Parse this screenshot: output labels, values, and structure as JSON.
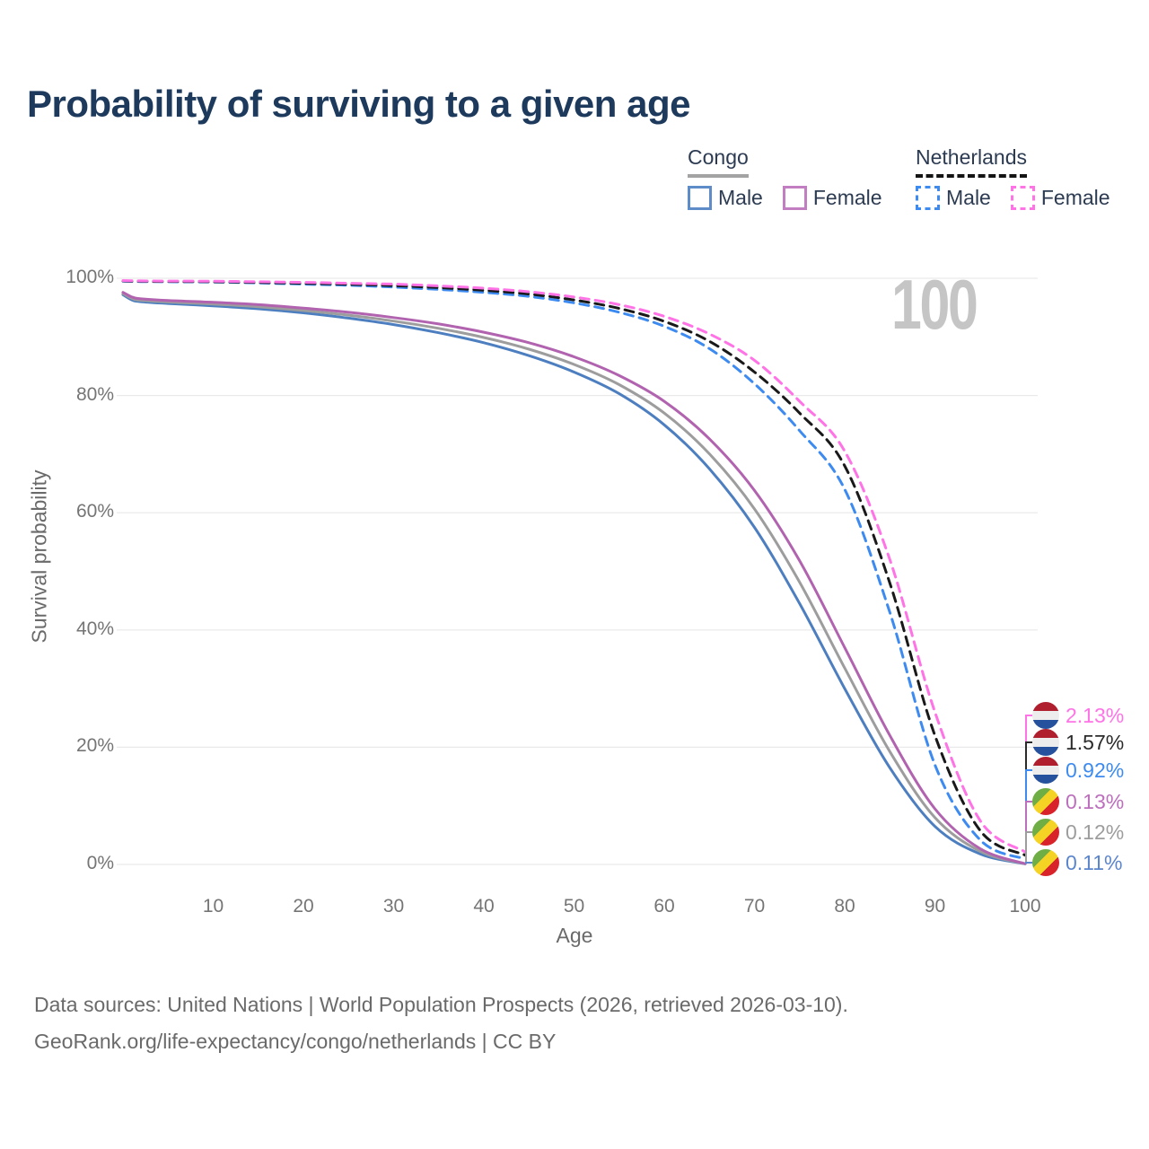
{
  "title": "Probability of surviving to a given age",
  "watermark_age": "100",
  "legend": {
    "congo": {
      "title": "Congo",
      "items": [
        {
          "label": "Male"
        },
        {
          "label": "Female"
        }
      ]
    },
    "netherlands": {
      "title": "Netherlands",
      "items": [
        {
          "label": "Male"
        },
        {
          "label": "Female"
        }
      ]
    }
  },
  "axes": {
    "x_title": "Age",
    "y_title": "Survival probability"
  },
  "footer": {
    "line1": "Data sources: United Nations | World Population Prospects (2026, retrieved 2026-03-10).",
    "line2": "GeoRank.org/life-expectancy/congo/netherlands | CC BY"
  },
  "colors": {
    "congo_male": "#4d7fc0",
    "congo_both": "#9d9d9d",
    "congo_female": "#b163af",
    "netherlands_male": "#3d8bf0",
    "netherlands_both": "#191919",
    "netherlands_female": "#ff73e6",
    "grid": "#e9e9e9",
    "title_text": "#1d3a5c",
    "tick_text": "#757575"
  },
  "chart_data": {
    "type": "line",
    "title": "Probability of surviving to a given age",
    "xlabel": "Age",
    "ylabel": "Survival probability",
    "xlim": [
      0,
      100
    ],
    "ylim": [
      0,
      100
    ],
    "grid": "horizontal",
    "legend_position": "top-right",
    "x_ticks": [
      10,
      20,
      30,
      40,
      50,
      60,
      70,
      80,
      90,
      100
    ],
    "x_tick_labels": [
      "10",
      "20",
      "30",
      "40",
      "50",
      "60",
      "70",
      "80",
      "90",
      "100"
    ],
    "y_ticks": [
      0,
      20,
      40,
      60,
      80,
      100
    ],
    "y_tick_labels": [
      "0%",
      "20%",
      "40%",
      "60%",
      "80%",
      "100%"
    ],
    "ages": [
      0,
      1,
      2,
      5,
      10,
      15,
      20,
      25,
      30,
      35,
      40,
      45,
      50,
      55,
      60,
      65,
      70,
      75,
      80,
      85,
      90,
      95,
      100
    ],
    "series": [
      {
        "name": "Congo Male",
        "country": "Congo",
        "sex": "Male",
        "style": "solid",
        "color": "#4d7fc0",
        "values": [
          97.2,
          96.3,
          96.0,
          95.7,
          95.3,
          94.8,
          94.1,
          93.2,
          92.1,
          90.7,
          89.0,
          86.8,
          84.0,
          80.3,
          75.0,
          67.5,
          57.5,
          44.5,
          30.0,
          16.5,
          6.5,
          1.8,
          0.11
        ]
      },
      {
        "name": "Congo Both sexes",
        "country": "Congo",
        "sex": "Both",
        "style": "solid",
        "color": "#9d9d9d",
        "values": [
          97.4,
          96.55,
          96.25,
          95.95,
          95.6,
          95.15,
          94.5,
          93.7,
          92.7,
          91.45,
          89.9,
          87.9,
          85.3,
          81.85,
          77.0,
          70.05,
          60.65,
          48.15,
          33.5,
          19.25,
          8.0,
          2.25,
          0.12
        ]
      },
      {
        "name": "Congo Female",
        "country": "Congo",
        "sex": "Female",
        "style": "solid",
        "color": "#b163af",
        "values": [
          97.6,
          96.8,
          96.5,
          96.2,
          95.9,
          95.5,
          94.9,
          94.2,
          93.3,
          92.2,
          90.8,
          89.0,
          86.6,
          83.4,
          79.0,
          72.6,
          63.8,
          51.8,
          37.0,
          22.0,
          9.5,
          2.7,
          0.13
        ]
      },
      {
        "name": "Netherlands Male",
        "country": "Netherlands",
        "sex": "Male",
        "style": "dashed",
        "color": "#3d8bf0",
        "values": [
          99.5,
          99.46,
          99.44,
          99.4,
          99.35,
          99.2,
          99.0,
          98.8,
          98.5,
          98.1,
          97.6,
          96.9,
          95.8,
          94.2,
          91.8,
          88.0,
          82.0,
          74.0,
          64.0,
          43.0,
          17.0,
          4.2,
          0.92
        ]
      },
      {
        "name": "Netherlands Both sexes",
        "country": "Netherlands",
        "sex": "Both",
        "style": "dashed",
        "color": "#191919",
        "values": [
          99.55,
          99.51,
          99.49,
          99.46,
          99.42,
          99.3,
          99.15,
          98.98,
          98.75,
          98.4,
          97.95,
          97.3,
          96.3,
          94.85,
          92.65,
          89.25,
          84.0,
          77.0,
          68.0,
          48.0,
          22.0,
          5.8,
          1.57
        ]
      },
      {
        "name": "Netherlands Female",
        "country": "Netherlands",
        "sex": "Female",
        "style": "dashed",
        "color": "#ff73e6",
        "values": [
          99.6,
          99.57,
          99.55,
          99.52,
          99.5,
          99.4,
          99.3,
          99.15,
          99.0,
          98.7,
          98.3,
          97.7,
          96.8,
          95.5,
          93.5,
          90.5,
          86.0,
          79.0,
          70.5,
          52.0,
          26.0,
          7.5,
          2.13
        ]
      }
    ],
    "end_labels": [
      {
        "series_index": 5,
        "text": "2.13%",
        "color": "#ff73e6",
        "flag": "netherlands"
      },
      {
        "series_index": 4,
        "text": "1.57%",
        "color": "#2b2b2b",
        "flag": "netherlands"
      },
      {
        "series_index": 3,
        "text": "0.92%",
        "color": "#3d8bf0",
        "flag": "netherlands"
      },
      {
        "series_index": 2,
        "text": "0.13%",
        "color": "#bc6fbc",
        "flag": "congo"
      },
      {
        "series_index": 1,
        "text": "0.12%",
        "color": "#9d9d9d",
        "flag": "congo"
      },
      {
        "series_index": 0,
        "text": "0.11%",
        "color": "#5b85cc",
        "flag": "congo"
      }
    ],
    "age_counter_watermark": "100"
  }
}
